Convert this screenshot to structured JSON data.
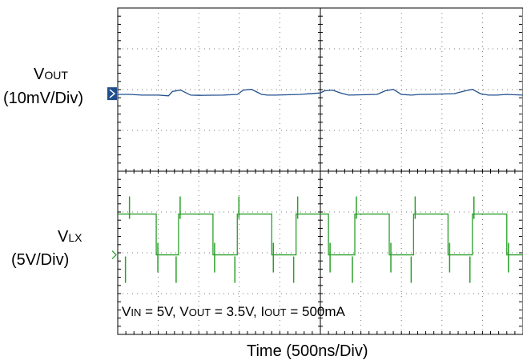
{
  "chart_data": {
    "type": "line",
    "title": "",
    "xlabel": "Time  (500ns/Div)",
    "grid": true,
    "divisions": {
      "x": 10,
      "y": 8
    },
    "channels": [
      {
        "name_main": "V",
        "name_sub": "OUT",
        "scale": "(10mV/Div)",
        "color": "#1f4e8c",
        "unit": "V",
        "volts_per_div": 0.01,
        "x_div": [
          0,
          0.3,
          0.6,
          1.0,
          1.25,
          1.35,
          1.55,
          1.8,
          2.0,
          2.6,
          2.95,
          3.1,
          3.3,
          3.55,
          3.7,
          3.9,
          4.5,
          5.0,
          5.1,
          5.3,
          5.5,
          5.7,
          6.4,
          6.6,
          6.8,
          7.0,
          7.25,
          7.45,
          7.6,
          8.3,
          8.6,
          8.75,
          8.95,
          9.15,
          9.35,
          9.6,
          10.0
        ],
        "y_div": [
          -0.05,
          -0.05,
          -0.1,
          -0.1,
          -0.15,
          0.15,
          0.25,
          -0.1,
          -0.12,
          -0.1,
          -0.05,
          0.25,
          0.3,
          -0.05,
          -0.1,
          -0.1,
          -0.05,
          0.05,
          0.2,
          0.25,
          0.05,
          -0.1,
          -0.05,
          0.2,
          0.3,
          -0.05,
          -0.1,
          -0.05,
          -0.05,
          0.0,
          0.22,
          0.3,
          0.0,
          -0.1,
          -0.1,
          -0.05,
          -0.1
        ]
      },
      {
        "name_main": "V",
        "name_sub": "LX",
        "scale": "(5V/Div)",
        "color": "#2aa02a",
        "unit": "V",
        "volts_per_div": 5,
        "switch_rise_div": [
          0.25,
          1.5,
          2.95,
          4.4,
          5.85,
          7.3,
          8.75
        ],
        "switch_fall_div": [
          0.95,
          2.35,
          3.8,
          5.2,
          6.7,
          8.15,
          9.6
        ],
        "high_level_v": 5,
        "low_level_v": 0
      }
    ],
    "conditions": [
      {
        "main": "V",
        "sub": "IN",
        "rest": " = 5V, "
      },
      {
        "main": "V",
        "sub": "OUT",
        "rest": " = 3.5V, "
      },
      {
        "main": "I",
        "sub": "OUT",
        "rest": " = 500mA"
      }
    ]
  }
}
